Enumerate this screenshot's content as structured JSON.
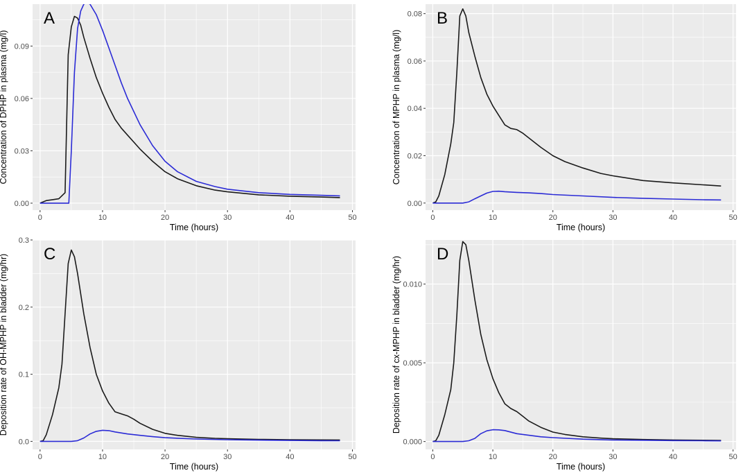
{
  "figure": {
    "series_colors": {
      "black_series": "#1a1a1a",
      "blue_series": "#2b2bd6"
    },
    "panel_background": "#ebebeb",
    "grid_color": "#ffffff"
  },
  "chart_data": [
    {
      "type": "line",
      "panel_label": "A",
      "title": "",
      "xlabel": "Time (hours)",
      "ylabel": "Concentration of DPHP in plasma (mg/l)",
      "xlim": [
        -1.2,
        50.5
      ],
      "ylim": [
        -0.004,
        0.114
      ],
      "x_ticks": [
        0,
        10,
        20,
        30,
        40,
        50
      ],
      "x_tick_labels": [
        "0",
        "10",
        "20",
        "30",
        "40",
        "50"
      ],
      "y_ticks": [
        0.0,
        0.03,
        0.06,
        0.09
      ],
      "y_tick_labels": [
        "0.00",
        "0.03",
        "0.06",
        "0.09"
      ],
      "series": [
        {
          "name": "black",
          "color": "#1a1a1a",
          "x": [
            0,
            1,
            2,
            3,
            4,
            4.5,
            5,
            5.5,
            6,
            6.5,
            7,
            8,
            9,
            10,
            11,
            12,
            13,
            14,
            16,
            18,
            20,
            22,
            25,
            28,
            30,
            35,
            40,
            45,
            48
          ],
          "y": [
            0,
            0.0015,
            0.002,
            0.0025,
            0.006,
            0.085,
            0.101,
            0.107,
            0.106,
            0.102,
            0.095,
            0.083,
            0.072,
            0.063,
            0.055,
            0.048,
            0.043,
            0.039,
            0.031,
            0.024,
            0.018,
            0.014,
            0.01,
            0.0075,
            0.0065,
            0.0048,
            0.004,
            0.0035,
            0.0032
          ]
        },
        {
          "name": "blue",
          "color": "#2b2bd6",
          "x": [
            0,
            2,
            4,
            4.6,
            5,
            5.5,
            6,
            6.5,
            7,
            7.5,
            8,
            9,
            10,
            11,
            12,
            13,
            14,
            16,
            18,
            20,
            22,
            25,
            28,
            30,
            35,
            40,
            45,
            48
          ],
          "y": [
            0,
            0,
            0,
            0,
            0.03,
            0.075,
            0.1,
            0.11,
            0.114,
            0.115,
            0.114,
            0.108,
            0.099,
            0.089,
            0.079,
            0.069,
            0.06,
            0.045,
            0.033,
            0.024,
            0.018,
            0.0125,
            0.0095,
            0.008,
            0.006,
            0.005,
            0.0045,
            0.0042
          ]
        }
      ]
    },
    {
      "type": "line",
      "panel_label": "B",
      "title": "",
      "xlabel": "Time (hours)",
      "ylabel": "Concentration of MPHP in plasma (mg/l)",
      "xlim": [
        -1.2,
        50.5
      ],
      "ylim": [
        -0.003,
        0.084
      ],
      "x_ticks": [
        0,
        10,
        20,
        30,
        40,
        50
      ],
      "x_tick_labels": [
        "0",
        "10",
        "20",
        "30",
        "40",
        "50"
      ],
      "y_ticks": [
        0.0,
        0.02,
        0.04,
        0.06,
        0.08
      ],
      "y_tick_labels": [
        "0.00",
        "0.02",
        "0.04",
        "0.06",
        "0.08"
      ],
      "series": [
        {
          "name": "black",
          "color": "#1a1a1a",
          "x": [
            0,
            0.5,
            1,
            2,
            3,
            3.5,
            4,
            4.5,
            5,
            5.5,
            6,
            7,
            8,
            9,
            10,
            11,
            12,
            13,
            14,
            15,
            16,
            18,
            20,
            22,
            25,
            28,
            30,
            35,
            40,
            45,
            48
          ],
          "y": [
            0,
            0.0005,
            0.003,
            0.012,
            0.025,
            0.034,
            0.055,
            0.079,
            0.082,
            0.079,
            0.072,
            0.062,
            0.053,
            0.046,
            0.041,
            0.037,
            0.033,
            0.0315,
            0.031,
            0.0295,
            0.0275,
            0.0235,
            0.02,
            0.0175,
            0.0148,
            0.0125,
            0.0115,
            0.0095,
            0.0085,
            0.0077,
            0.0072
          ]
        },
        {
          "name": "blue",
          "color": "#2b2bd6",
          "x": [
            0,
            2,
            4,
            5,
            6,
            7,
            8,
            9,
            10,
            11,
            12,
            14,
            16,
            18,
            20,
            25,
            30,
            35,
            40,
            45,
            48
          ],
          "y": [
            0,
            0,
            0,
            0,
            0.0005,
            0.0018,
            0.003,
            0.0042,
            0.0049,
            0.005,
            0.0048,
            0.0045,
            0.0043,
            0.004,
            0.0036,
            0.003,
            0.0024,
            0.002,
            0.0017,
            0.0014,
            0.0013
          ]
        }
      ]
    },
    {
      "type": "line",
      "panel_label": "C",
      "title": "",
      "xlabel": "Time (hours)",
      "ylabel": "Deposition rate of OH-MPHP in bladder (mg/hr)",
      "xlim": [
        -1.2,
        50.5
      ],
      "ylim": [
        -0.012,
        0.3
      ],
      "x_ticks": [
        0,
        10,
        20,
        30,
        40,
        50
      ],
      "x_tick_labels": [
        "0",
        "10",
        "20",
        "30",
        "40",
        "50"
      ],
      "y_ticks": [
        0.0,
        0.1,
        0.2,
        0.3
      ],
      "y_tick_labels": [
        "0.0",
        "0.1",
        "0.2",
        "0.3"
      ],
      "series": [
        {
          "name": "black",
          "color": "#1a1a1a",
          "x": [
            0,
            0.5,
            1,
            2,
            3,
            3.5,
            4,
            4.5,
            5,
            5.5,
            6,
            7,
            8,
            9,
            10,
            11,
            12,
            13,
            14,
            15,
            16,
            18,
            20,
            22,
            25,
            28,
            30,
            35,
            40,
            45,
            48
          ],
          "y": [
            0,
            0.001,
            0.01,
            0.04,
            0.08,
            0.115,
            0.19,
            0.265,
            0.285,
            0.275,
            0.25,
            0.19,
            0.14,
            0.1,
            0.075,
            0.057,
            0.044,
            0.041,
            0.038,
            0.033,
            0.027,
            0.018,
            0.012,
            0.009,
            0.006,
            0.0045,
            0.004,
            0.003,
            0.0025,
            0.0022,
            0.002
          ]
        },
        {
          "name": "blue",
          "color": "#2b2bd6",
          "x": [
            0,
            2,
            4,
            5,
            6,
            7,
            8,
            9,
            10,
            11,
            12,
            14,
            16,
            18,
            20,
            25,
            30,
            35,
            40,
            45,
            48
          ],
          "y": [
            0,
            0,
            0,
            0,
            0.001,
            0.005,
            0.011,
            0.015,
            0.0165,
            0.016,
            0.014,
            0.011,
            0.009,
            0.007,
            0.0055,
            0.0035,
            0.0025,
            0.0018,
            0.0013,
            0.001,
            0.0009
          ]
        }
      ]
    },
    {
      "type": "line",
      "panel_label": "D",
      "title": "",
      "xlabel": "Time (hours)",
      "ylabel": "Deposition rate of cx-MPHP in bladder (mg/hr)",
      "xlim": [
        -1.2,
        50.5
      ],
      "ylim": [
        -0.0005,
        0.0128
      ],
      "x_ticks": [
        0,
        10,
        20,
        30,
        40,
        50
      ],
      "x_tick_labels": [
        "0",
        "10",
        "20",
        "30",
        "40",
        "50"
      ],
      "y_ticks": [
        0.0,
        0.005,
        0.01
      ],
      "y_tick_labels": [
        "0.000",
        "0.005",
        "0.010"
      ],
      "series": [
        {
          "name": "black",
          "color": "#1a1a1a",
          "x": [
            0,
            0.5,
            1,
            2,
            3,
            3.5,
            4,
            4.5,
            5,
            5.5,
            6,
            7,
            8,
            9,
            10,
            11,
            12,
            13,
            14,
            15,
            16,
            18,
            20,
            22,
            25,
            28,
            30,
            35,
            40,
            45,
            48
          ],
          "y": [
            0,
            5e-05,
            0.0004,
            0.0017,
            0.0033,
            0.005,
            0.008,
            0.0115,
            0.0127,
            0.0125,
            0.0115,
            0.009,
            0.0068,
            0.0052,
            0.004,
            0.0031,
            0.0024,
            0.0021,
            0.0019,
            0.0016,
            0.0013,
            0.0009,
            0.0006,
            0.00045,
            0.0003,
            0.00022,
            0.00018,
            0.00013,
            0.0001,
            8e-05,
            7e-05
          ]
        },
        {
          "name": "blue",
          "color": "#2b2bd6",
          "x": [
            0,
            2,
            4,
            5,
            6,
            7,
            8,
            9,
            10,
            11,
            12,
            14,
            16,
            18,
            20,
            25,
            30,
            35,
            40,
            45,
            48
          ],
          "y": [
            0,
            0,
            0,
            0,
            5e-05,
            0.0002,
            0.0005,
            0.00068,
            0.00075,
            0.00074,
            0.0007,
            0.0005,
            0.0004,
            0.0003,
            0.00025,
            0.00015,
            0.0001,
            8e-05,
            6e-05,
            5e-05,
            4e-05
          ]
        }
      ]
    }
  ]
}
